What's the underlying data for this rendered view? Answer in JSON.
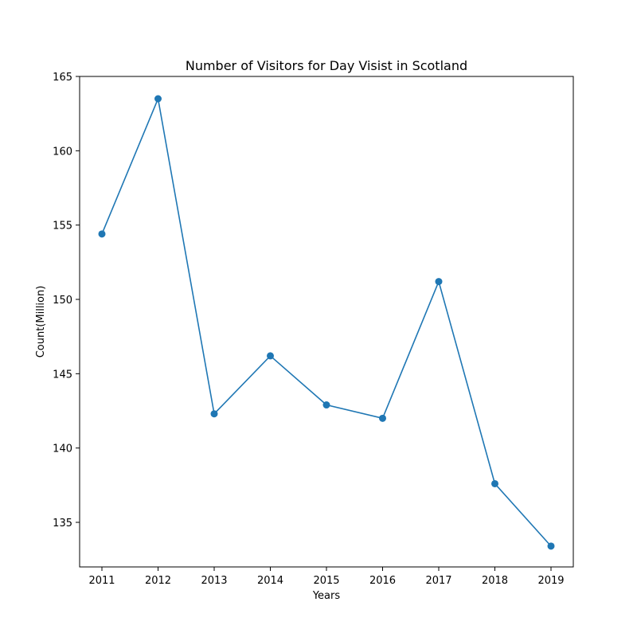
{
  "chart_data": {
    "type": "line",
    "title": "Number of Visitors for Day Visist in Scotland",
    "xlabel": "Years",
    "ylabel": "Count(Million)",
    "categories": [
      "2011",
      "2012",
      "2013",
      "2014",
      "2015",
      "2016",
      "2017",
      "2018",
      "2019"
    ],
    "series": [
      {
        "values": [
          154.4,
          163.5,
          142.3,
          146.2,
          142.9,
          142.0,
          151.2,
          137.6,
          133.4
        ]
      }
    ],
    "ylim": [
      132,
      165
    ],
    "yticks": [
      135,
      140,
      145,
      150,
      155,
      160,
      165
    ],
    "line_color": "#1f77b4",
    "marker": "circle",
    "grid": false,
    "legend": "none"
  }
}
